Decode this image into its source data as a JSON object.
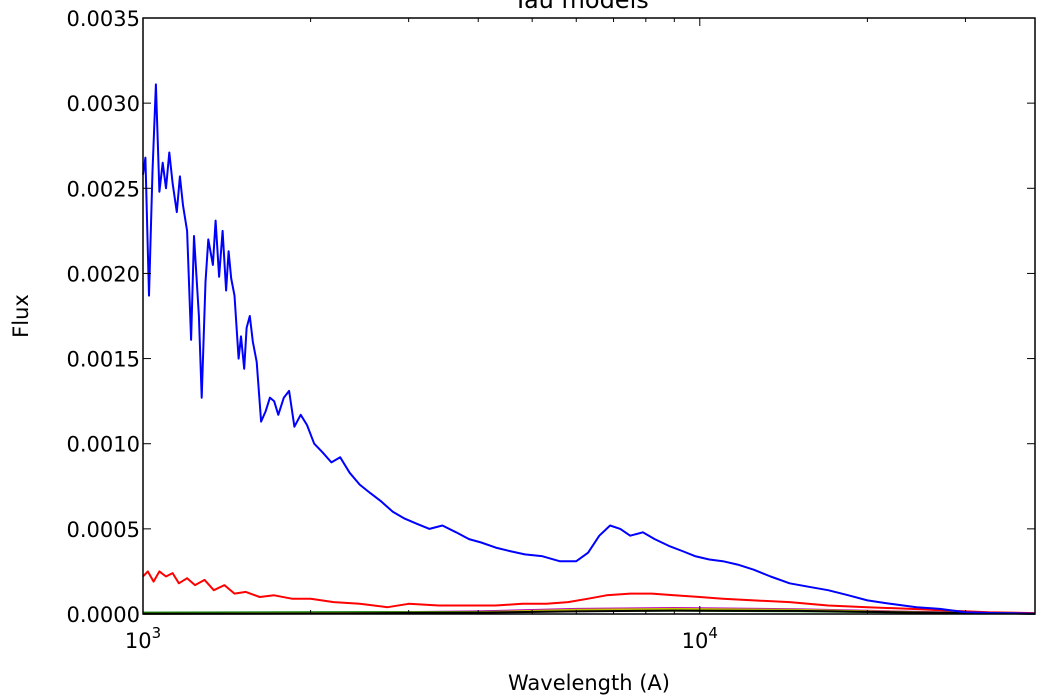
{
  "chart_data": {
    "type": "line",
    "title": "Tau models",
    "xlabel": "Wavelength (A)",
    "ylabel": "Flux",
    "xscale": "log",
    "xlim": [
      1000,
      40000
    ],
    "ylim": [
      0,
      0.0035
    ],
    "grid": false,
    "legend": "none",
    "y_ticks": [
      {
        "value": 0.0,
        "label": "0.0000"
      },
      {
        "value": 0.0005,
        "label": "0.0005"
      },
      {
        "value": 0.001,
        "label": "0.0010"
      },
      {
        "value": 0.0015,
        "label": "0.0015"
      },
      {
        "value": 0.002,
        "label": "0.0020"
      },
      {
        "value": 0.0025,
        "label": "0.0025"
      },
      {
        "value": 0.003,
        "label": "0.0030"
      },
      {
        "value": 0.0035,
        "label": "0.0035"
      }
    ],
    "x_major_ticks": [
      {
        "value": 1000,
        "base": "10",
        "exp": "3"
      },
      {
        "value": 10000,
        "base": "10",
        "exp": "4"
      }
    ],
    "series": [
      {
        "color": "#0000ff",
        "points": [
          [
            1000,
            0.00258
          ],
          [
            1010,
            0.00268
          ],
          [
            1025,
            0.00187
          ],
          [
            1040,
            0.0026
          ],
          [
            1055,
            0.00311
          ],
          [
            1070,
            0.00248
          ],
          [
            1085,
            0.00265
          ],
          [
            1100,
            0.0025
          ],
          [
            1115,
            0.00271
          ],
          [
            1130,
            0.00253
          ],
          [
            1150,
            0.00236
          ],
          [
            1165,
            0.00257
          ],
          [
            1180,
            0.0024
          ],
          [
            1200,
            0.00225
          ],
          [
            1220,
            0.00161
          ],
          [
            1235,
            0.00222
          ],
          [
            1260,
            0.00175
          ],
          [
            1275,
            0.00127
          ],
          [
            1295,
            0.00195
          ],
          [
            1310,
            0.0022
          ],
          [
            1335,
            0.00205
          ],
          [
            1350,
            0.00231
          ],
          [
            1370,
            0.00198
          ],
          [
            1390,
            0.00225
          ],
          [
            1410,
            0.0019
          ],
          [
            1425,
            0.00213
          ],
          [
            1440,
            0.00197
          ],
          [
            1460,
            0.00187
          ],
          [
            1485,
            0.0015
          ],
          [
            1500,
            0.00163
          ],
          [
            1520,
            0.00144
          ],
          [
            1535,
            0.00168
          ],
          [
            1555,
            0.00175
          ],
          [
            1575,
            0.0016
          ],
          [
            1600,
            0.00148
          ],
          [
            1630,
            0.00113
          ],
          [
            1660,
            0.00119
          ],
          [
            1690,
            0.00127
          ],
          [
            1720,
            0.00125
          ],
          [
            1750,
            0.00117
          ],
          [
            1790,
            0.00127
          ],
          [
            1830,
            0.00131
          ],
          [
            1870,
            0.0011
          ],
          [
            1920,
            0.00117
          ],
          [
            1970,
            0.00111
          ],
          [
            2030,
            0.001
          ],
          [
            2100,
            0.00095
          ],
          [
            2180,
            0.00089
          ],
          [
            2260,
            0.00092
          ],
          [
            2350,
            0.00083
          ],
          [
            2450,
            0.00076
          ],
          [
            2560,
            0.00071
          ],
          [
            2680,
            0.00066
          ],
          [
            2810,
            0.0006
          ],
          [
            2950,
            0.00056
          ],
          [
            3100,
            0.00053
          ],
          [
            3270,
            0.0005
          ],
          [
            3450,
            0.00052
          ],
          [
            3650,
            0.00048
          ],
          [
            3850,
            0.00044
          ],
          [
            4050,
            0.00042
          ],
          [
            4300,
            0.00039
          ],
          [
            4550,
            0.00037
          ],
          [
            4850,
            0.00035
          ],
          [
            5200,
            0.00034
          ],
          [
            5600,
            0.00031
          ],
          [
            6000,
            0.00031
          ],
          [
            6300,
            0.00036
          ],
          [
            6600,
            0.00046
          ],
          [
            6900,
            0.00052
          ],
          [
            7200,
            0.0005
          ],
          [
            7500,
            0.00046
          ],
          [
            7900,
            0.00048
          ],
          [
            8300,
            0.00044
          ],
          [
            8800,
            0.0004
          ],
          [
            9300,
            0.00037
          ],
          [
            9800,
            0.00034
          ],
          [
            10400,
            0.00032
          ],
          [
            11000,
            0.00031
          ],
          [
            11700,
            0.00029
          ],
          [
            12500,
            0.00026
          ],
          [
            13400,
            0.00022
          ],
          [
            14500,
            0.00018
          ],
          [
            15700,
            0.00016
          ],
          [
            17000,
            0.00014
          ],
          [
            18500,
            0.00011
          ],
          [
            20000,
            8e-05
          ],
          [
            22000,
            6e-05
          ],
          [
            24500,
            4e-05
          ],
          [
            27000,
            3e-05
          ],
          [
            30000,
            1e-05
          ],
          [
            34000,
            5e-06
          ],
          [
            40000,
            2e-06
          ]
        ]
      },
      {
        "color": "#ff0000",
        "points": [
          [
            1000,
            0.00022
          ],
          [
            1020,
            0.00025
          ],
          [
            1045,
            0.00019
          ],
          [
            1070,
            0.00025
          ],
          [
            1100,
            0.00022
          ],
          [
            1130,
            0.00024
          ],
          [
            1160,
            0.00018
          ],
          [
            1200,
            0.00021
          ],
          [
            1240,
            0.00017
          ],
          [
            1290,
            0.0002
          ],
          [
            1340,
            0.00014
          ],
          [
            1400,
            0.00017
          ],
          [
            1460,
            0.00012
          ],
          [
            1530,
            0.00013
          ],
          [
            1620,
            0.0001
          ],
          [
            1720,
            0.00011
          ],
          [
            1850,
            9e-05
          ],
          [
            2000,
            9e-05
          ],
          [
            2200,
            7e-05
          ],
          [
            2450,
            6e-05
          ],
          [
            2750,
            4e-05
          ],
          [
            3000,
            6e-05
          ],
          [
            3400,
            5e-05
          ],
          [
            3800,
            5e-05
          ],
          [
            4300,
            5e-05
          ],
          [
            4800,
            6e-05
          ],
          [
            5300,
            6e-05
          ],
          [
            5800,
            7e-05
          ],
          [
            6300,
            9e-05
          ],
          [
            6800,
            0.00011
          ],
          [
            7500,
            0.00012
          ],
          [
            8200,
            0.00012
          ],
          [
            9000,
            0.00011
          ],
          [
            10000,
            0.0001
          ],
          [
            11000,
            9e-05
          ],
          [
            12500,
            8e-05
          ],
          [
            14500,
            7e-05
          ],
          [
            17000,
            5e-05
          ],
          [
            20000,
            4e-05
          ],
          [
            24000,
            3e-05
          ],
          [
            28000,
            2e-05
          ],
          [
            33000,
            1e-05
          ],
          [
            40000,
            5e-06
          ]
        ]
      },
      {
        "color": "#00bfbf",
        "points": [
          [
            1000,
            5e-06
          ],
          [
            2000,
            8e-06
          ],
          [
            4000,
            1.2e-05
          ],
          [
            6000,
            2e-05
          ],
          [
            9000,
            2.5e-05
          ],
          [
            15000,
            2e-05
          ],
          [
            25000,
            1e-05
          ],
          [
            40000,
            2e-06
          ]
        ]
      },
      {
        "color": "#bf00bf",
        "points": [
          [
            1000,
            3e-06
          ],
          [
            2000,
            6e-06
          ],
          [
            4000,
            1.5e-05
          ],
          [
            6000,
            3e-05
          ],
          [
            9000,
            3.5e-05
          ],
          [
            15000,
            2.8e-05
          ],
          [
            25000,
            1.2e-05
          ],
          [
            40000,
            3e-06
          ]
        ]
      },
      {
        "color": "#008000",
        "points": [
          [
            1000,
            8e-06
          ],
          [
            2000,
            1e-05
          ],
          [
            4000,
            1.2e-05
          ],
          [
            6000,
            1.8e-05
          ],
          [
            9000,
            2e-05
          ],
          [
            15000,
            1.6e-05
          ],
          [
            25000,
            8e-06
          ],
          [
            40000,
            2e-06
          ]
        ]
      },
      {
        "color": "#bfbf00",
        "points": [
          [
            1000,
            2e-06
          ],
          [
            2000,
            4e-06
          ],
          [
            4000,
            1e-05
          ],
          [
            6000,
            2.5e-05
          ],
          [
            9000,
            3e-05
          ],
          [
            15000,
            2.4e-05
          ],
          [
            25000,
            1e-05
          ],
          [
            40000,
            2e-06
          ]
        ]
      },
      {
        "color": "#000000",
        "points": [
          [
            1000,
            1e-06
          ],
          [
            2000,
            3e-06
          ],
          [
            4000,
            8e-06
          ],
          [
            6000,
            1.5e-05
          ],
          [
            9000,
            2e-05
          ],
          [
            15000,
            1.8e-05
          ],
          [
            25000,
            9e-06
          ],
          [
            40000,
            2e-06
          ]
        ]
      }
    ]
  }
}
